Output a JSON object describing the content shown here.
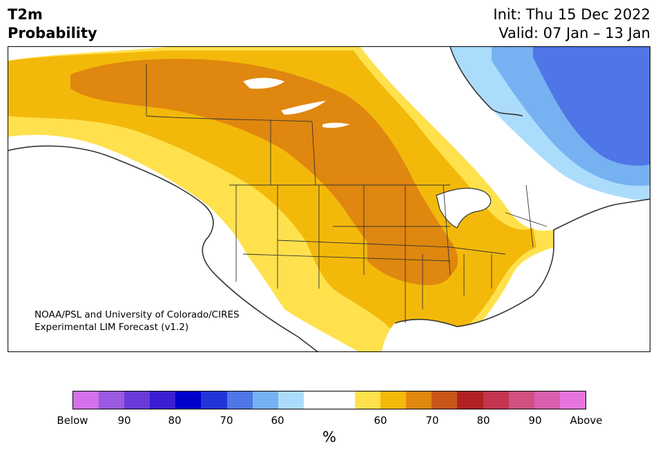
{
  "header": {
    "variable": "T2m",
    "product": "Probability",
    "init": "Init: Thu 15 Dec 2022",
    "valid": "Valid: 07 Jan – 13 Jan"
  },
  "credit": {
    "line1": "NOAA/PSL and University of Colorado/CIRES",
    "line2": "Experimental LIM Forecast (v1.2)"
  },
  "colorbar": {
    "colors": [
      "#d670ea",
      "#9b58e0",
      "#6a3ad8",
      "#3a1fd2",
      "#0000cc",
      "#2235d8",
      "#4f75e6",
      "#76b1f2",
      "#acdcfc",
      "#ffffff",
      "#ffffff",
      "#ffe14d",
      "#f3b90a",
      "#df870f",
      "#c85518",
      "#b22222",
      "#c3344f",
      "#d05081",
      "#da5fb0",
      "#e874df"
    ],
    "tick_labels": [
      "Below",
      "90",
      "80",
      "70",
      "60",
      "60",
      "70",
      "80",
      "90",
      "Above"
    ],
    "unit": "%"
  },
  "legend_colors": {
    "warm_60": "#ffe14d",
    "warm_65": "#f3b90a",
    "warm_70": "#df870f",
    "cold_60": "#acdcfc",
    "cold_65": "#76b1f2",
    "cold_70": "#4f75e6"
  }
}
